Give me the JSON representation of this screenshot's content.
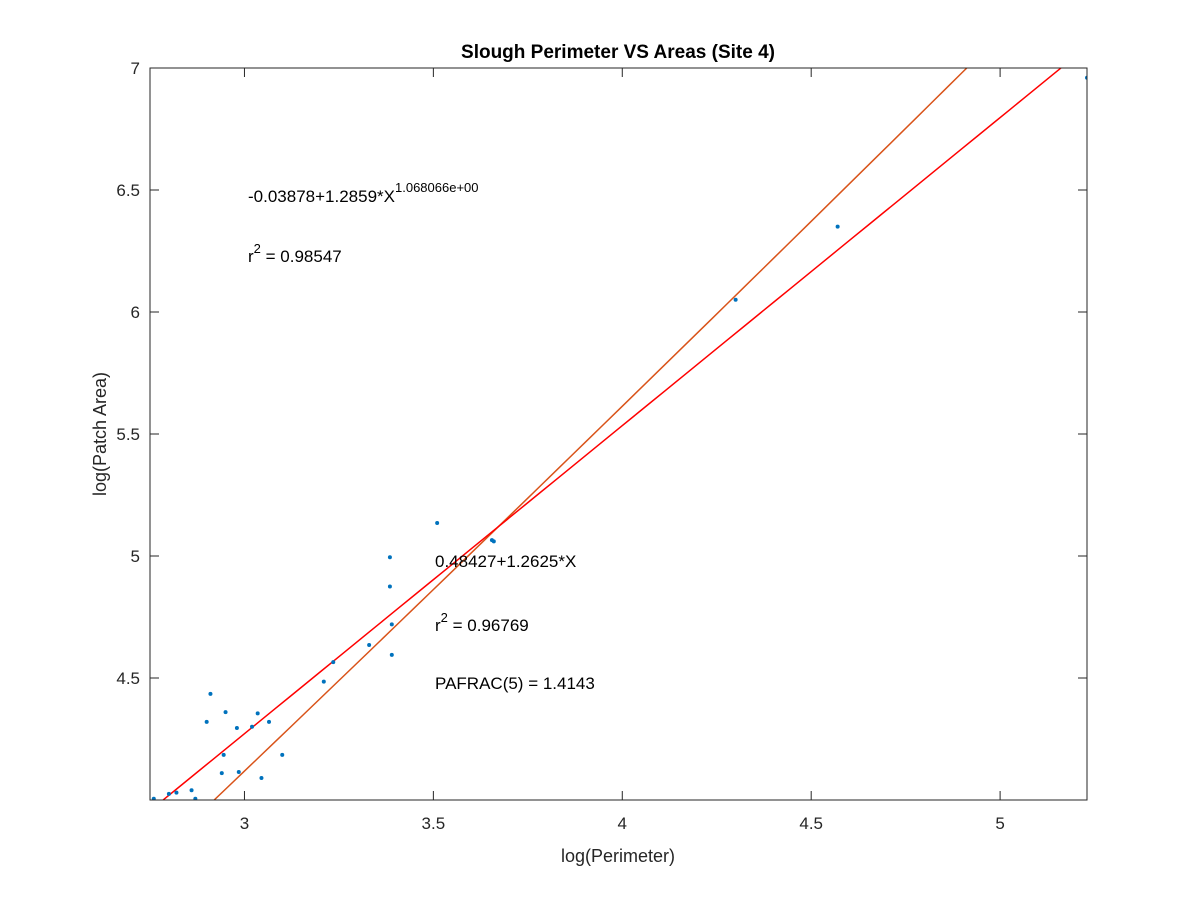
{
  "chart_data": {
    "type": "scatter",
    "title": "Slough Perimeter VS Areas (Site 4)",
    "xlabel": "log(Perimeter)",
    "ylabel": "log(Patch Area)",
    "xlim": [
      2.75,
      5.23
    ],
    "ylim": [
      4.0,
      7.0
    ],
    "xticks": [
      3,
      3.5,
      4,
      4.5,
      5
    ],
    "yticks": [
      4.5,
      5,
      5.5,
      6,
      6.5,
      7
    ],
    "xtick_labels": [
      "3",
      "3.5",
      "4",
      "4.5",
      "5"
    ],
    "ytick_labels": [
      "4.5",
      "5",
      "5.5",
      "6",
      "6.5",
      "7"
    ],
    "grid": false,
    "points": {
      "x": [
        2.76,
        2.8,
        2.82,
        2.86,
        2.87,
        2.9,
        2.91,
        2.94,
        2.945,
        2.95,
        2.98,
        2.985,
        3.02,
        3.035,
        3.045,
        3.065,
        3.1,
        3.21,
        3.235,
        3.33,
        3.385,
        3.385,
        3.39,
        3.39,
        3.51,
        3.655,
        3.66,
        4.3,
        4.57,
        5.23
      ],
      "y": [
        4.005,
        4.025,
        4.03,
        4.04,
        4.005,
        4.32,
        4.435,
        4.11,
        4.185,
        4.36,
        4.295,
        4.115,
        4.3,
        4.355,
        4.09,
        4.32,
        4.185,
        4.485,
        4.565,
        4.635,
        4.995,
        4.875,
        4.72,
        4.595,
        5.135,
        5.065,
        5.06,
        6.05,
        6.35,
        6.96
      ]
    },
    "series": [
      {
        "intercept": -0.03878,
        "slope": 1.2859,
        "exponent": 1.068066,
        "color": "#d95319"
      },
      {
        "intercept": 0.48427,
        "slope": 1.2625,
        "exponent": 1.0,
        "color": "#ff0000"
      }
    ],
    "point_color": "#0072bd",
    "annotations": {
      "fit1_equation": "-0.03878+1.2859*X",
      "fit1_exponent": "1.068066e+00",
      "fit1_r2_prefix": "r",
      "fit1_r2_sup": "2",
      "fit1_r2_value": " = 0.98547",
      "fit2_equation": "0.48427+1.2625*X",
      "fit2_r2_prefix": "r",
      "fit2_r2_sup": "2",
      "fit2_r2_value": " = 0.96769",
      "pafrac": "PAFRAC(5) = 1.4143"
    }
  }
}
